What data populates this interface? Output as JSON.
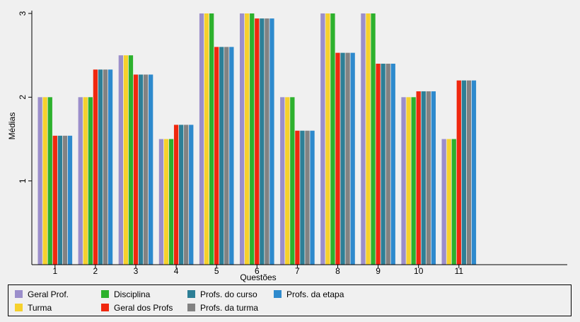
{
  "chart_data": {
    "type": "bar",
    "xlabel": "Questões",
    "ylabel": "Médias",
    "ylim": [
      0,
      3
    ],
    "yticks": [
      "1",
      "2",
      "3"
    ],
    "grid": false,
    "legend_position": "bottom",
    "categories": [
      "1",
      "2",
      "3",
      "4",
      "5",
      "6",
      "7",
      "8",
      "9",
      "10",
      "11"
    ],
    "series": [
      {
        "name": "Geral Prof.",
        "color": "#9b8ecb",
        "values": [
          2,
          2,
          2.5,
          1.5,
          3,
          3,
          2,
          3,
          3,
          2,
          1.5
        ]
      },
      {
        "name": "Turma",
        "color": "#f6d12c",
        "values": [
          2,
          2,
          2.5,
          1.5,
          3,
          3,
          2,
          3,
          3,
          2,
          1.5
        ]
      },
      {
        "name": "Disciplina",
        "color": "#2db12d",
        "values": [
          2,
          2,
          2.5,
          1.5,
          3,
          3,
          2,
          3,
          3,
          2,
          1.5
        ]
      },
      {
        "name": "Geral dos Profs",
        "color": "#f0280f",
        "values": [
          1.54,
          2.33,
          2.27,
          1.67,
          2.6,
          2.94,
          1.6,
          2.53,
          2.4,
          2.07,
          2.2
        ]
      },
      {
        "name": "Profs. do curso",
        "color": "#2d7f96",
        "values": [
          1.54,
          2.33,
          2.27,
          1.67,
          2.6,
          2.94,
          1.6,
          2.53,
          2.4,
          2.07,
          2.2
        ]
      },
      {
        "name": "Profs. da turma",
        "color": "#828282",
        "values": [
          1.54,
          2.33,
          2.27,
          1.67,
          2.6,
          2.94,
          1.6,
          2.53,
          2.4,
          2.07,
          2.2
        ]
      },
      {
        "name": "Profs. da etapa",
        "color": "#2e8acd",
        "values": [
          1.54,
          2.33,
          2.27,
          1.67,
          2.6,
          2.94,
          1.6,
          2.53,
          2.4,
          2.07,
          2.2
        ]
      }
    ]
  }
}
